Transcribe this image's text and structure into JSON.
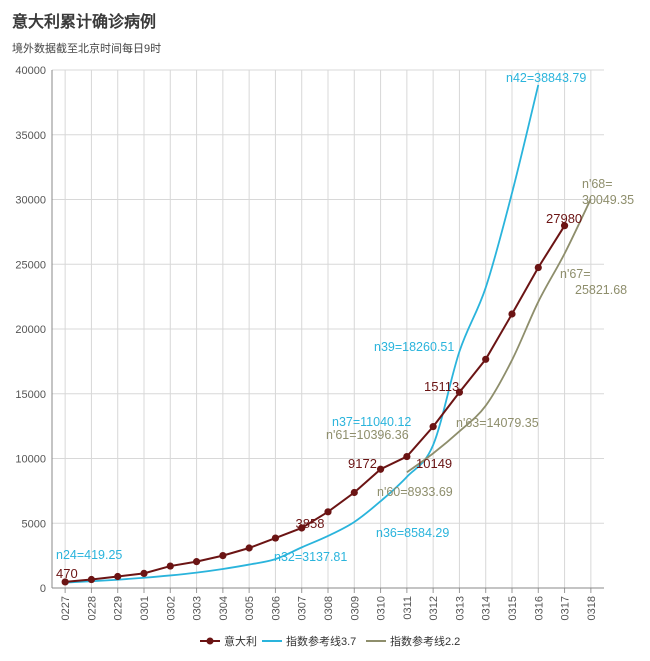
{
  "title": "意大利累计确诊病例",
  "subtitle": "境外数据截至北京时间每日9时",
  "chart_data": {
    "type": "line",
    "title": "意大利累计确诊病例",
    "subtitle": "境外数据截至北京时间每日9时",
    "categories": [
      "0227",
      "0228",
      "0229",
      "0301",
      "0302",
      "0303",
      "0304",
      "0305",
      "0306",
      "0307",
      "0308",
      "0309",
      "0310",
      "0311",
      "0312",
      "0313",
      "0314",
      "0315",
      "0316",
      "0317",
      "0318"
    ],
    "ylim": [
      0,
      40000
    ],
    "yticks": [
      0,
      5000,
      10000,
      15000,
      20000,
      25000,
      30000,
      35000,
      40000
    ],
    "grid": true,
    "legend_position": "bottom",
    "series": [
      {
        "name": "意大利",
        "color": "#6b1414",
        "marker": "circle",
        "values": [
          470,
          655,
          889,
          1128,
          1694,
          2036,
          2502,
          3089,
          3858,
          4636,
          5883,
          7375,
          9172,
          10149,
          12462,
          15113,
          17660,
          21157,
          24747,
          27980,
          null
        ]
      },
      {
        "name": "指数参考线3.7",
        "color": "#2ab4dc",
        "values": [
          419.25,
          520,
          640,
          790,
          970,
          1190,
          1470,
          1810,
          2230,
          3137.81,
          4020,
          5100,
          6700,
          8584.29,
          11040.12,
          18260.51,
          23200,
          30500,
          38843.79,
          null,
          null
        ]
      },
      {
        "name": "指数参考线2.2",
        "color": "#8e8e6c",
        "values": [
          null,
          null,
          null,
          null,
          null,
          null,
          null,
          null,
          null,
          null,
          null,
          null,
          null,
          8933.69,
          10396.36,
          12100,
          14079.35,
          17600,
          22100,
          25821.68,
          30049.35
        ]
      }
    ],
    "annotations": [
      {
        "text": "470",
        "color": "#6b1414"
      },
      {
        "text": "3858",
        "color": "#6b1414"
      },
      {
        "text": "9172",
        "color": "#6b1414"
      },
      {
        "text": "10149",
        "color": "#6b1414"
      },
      {
        "text": "15113",
        "color": "#6b1414"
      },
      {
        "text": "27980",
        "color": "#6b1414"
      },
      {
        "text": "n24=419.25",
        "color": "#2ab4dc"
      },
      {
        "text": "n32=3137.81",
        "color": "#2ab4dc"
      },
      {
        "text": "n36=8584.29",
        "color": "#2ab4dc"
      },
      {
        "text": "n37=11040.12",
        "color": "#2ab4dc"
      },
      {
        "text": "n39=18260.51",
        "color": "#2ab4dc"
      },
      {
        "text": "n42=38843.79",
        "color": "#2ab4dc"
      },
      {
        "text": "n'60=8933.69",
        "color": "#8e8e6c"
      },
      {
        "text": "n'61=10396.36",
        "color": "#8e8e6c"
      },
      {
        "text": "n'63=14079.35",
        "color": "#8e8e6c"
      },
      {
        "text": "n'67=",
        "color": "#8e8e6c"
      },
      {
        "text": "25821.68",
        "color": "#8e8e6c"
      },
      {
        "text": "n'68=",
        "color": "#8e8e6c"
      },
      {
        "text": "30049.35",
        "color": "#8e8e6c"
      }
    ]
  }
}
